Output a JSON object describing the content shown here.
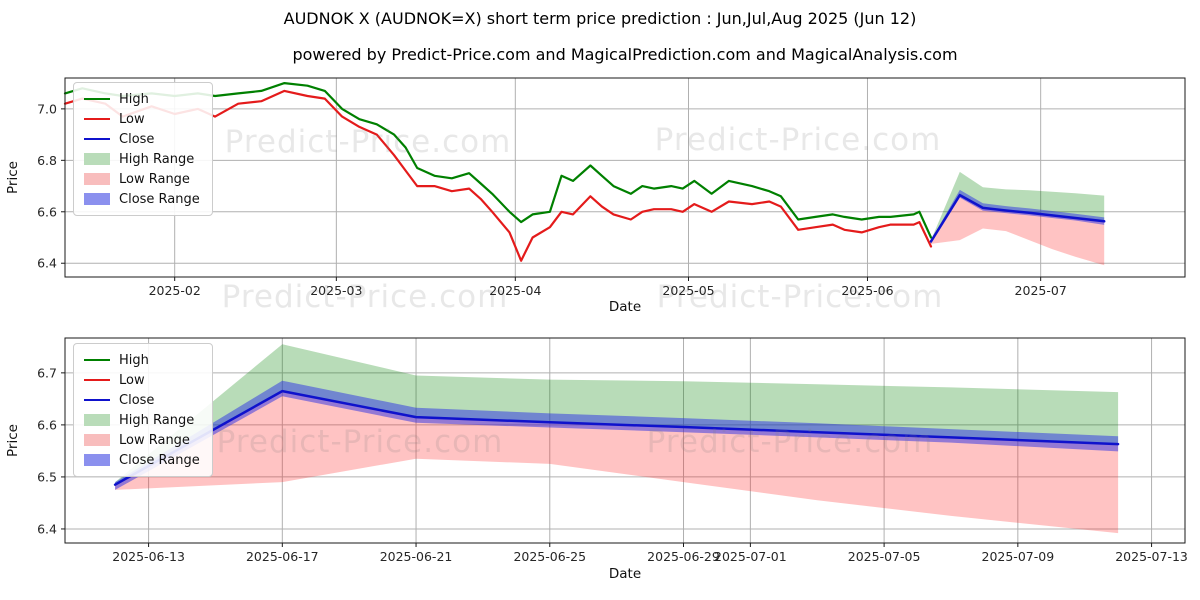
{
  "figure": {
    "title": "AUDNOK X (AUDNOK=X) short term price prediction : Jun,Jul,Aug 2025 (Jun 12)",
    "subtitle": "powered by Predict-Price.com and MagicalPrediction.com and MagicalAnalysis.com",
    "watermark": "Predict-Price.com",
    "background": "#ffffff"
  },
  "colors": {
    "high": "#008000",
    "low": "#e41b1b",
    "close": "#0f12cc",
    "high_range_fill": "rgba(0,128,0,0.28)",
    "low_range_fill": "rgba(255,32,32,0.27)",
    "close_range_fill": "rgba(42,48,230,0.5)",
    "high_range_swatch": "#b9dcb9",
    "low_range_swatch": "#f8bdbd",
    "close_range_swatch": "#8b90ee",
    "grid": "#b0b0b0",
    "spine": "#1a1a1a",
    "tick_label": "#262626"
  },
  "chart_data": [
    {
      "type": "line",
      "title": "",
      "xlabel": "Date",
      "ylabel": "Price",
      "xlim": [
        "2025-01-13",
        "2025-07-26"
      ],
      "ylim": [
        6.3465,
        7.12
      ],
      "grid": true,
      "legend_position": "upper left",
      "y_ticks": [
        {
          "value": 7.0,
          "label": "7.0"
        },
        {
          "value": 6.8,
          "label": "6.8"
        },
        {
          "value": 6.6,
          "label": "6.6"
        },
        {
          "value": 6.4,
          "label": "6.4"
        }
      ],
      "x_ticks": [
        {
          "date": "2025-02-01",
          "label": "2025-02"
        },
        {
          "date": "2025-03-01",
          "label": "2025-03"
        },
        {
          "date": "2025-04-01",
          "label": "2025-04"
        },
        {
          "date": "2025-05-01",
          "label": "2025-05"
        },
        {
          "date": "2025-06-01",
          "label": "2025-06"
        },
        {
          "date": "2025-07-01",
          "label": "2025-07"
        }
      ],
      "historical": {
        "dates": [
          "2025-01-13",
          "2025-01-16",
          "2025-01-20",
          "2025-01-23",
          "2025-01-28",
          "2025-02-01",
          "2025-02-05",
          "2025-02-08",
          "2025-02-12",
          "2025-02-16",
          "2025-02-20",
          "2025-02-24",
          "2025-02-27",
          "2025-03-02",
          "2025-03-05",
          "2025-03-08",
          "2025-03-11",
          "2025-03-13",
          "2025-03-15",
          "2025-03-18",
          "2025-03-21",
          "2025-03-24",
          "2025-03-26",
          "2025-03-28",
          "2025-03-31",
          "2025-04-02",
          "2025-04-04",
          "2025-04-07",
          "2025-04-09",
          "2025-04-11",
          "2025-04-14",
          "2025-04-16",
          "2025-04-18",
          "2025-04-21",
          "2025-04-23",
          "2025-04-25",
          "2025-04-28",
          "2025-04-30",
          "2025-05-02",
          "2025-05-05",
          "2025-05-08",
          "2025-05-12",
          "2025-05-15",
          "2025-05-17",
          "2025-05-20",
          "2025-05-23",
          "2025-05-26",
          "2025-05-28",
          "2025-05-31",
          "2025-06-03",
          "2025-06-05",
          "2025-06-09",
          "2025-06-10",
          "2025-06-12"
        ],
        "high": [
          7.06,
          7.08,
          7.06,
          7.05,
          7.06,
          7.05,
          7.06,
          7.05,
          7.06,
          7.07,
          7.1,
          7.09,
          7.07,
          7.0,
          6.96,
          6.94,
          6.9,
          6.85,
          6.77,
          6.74,
          6.73,
          6.75,
          6.71,
          6.67,
          6.6,
          6.56,
          6.59,
          6.6,
          6.74,
          6.72,
          6.78,
          6.74,
          6.7,
          6.67,
          6.7,
          6.69,
          6.7,
          6.69,
          6.72,
          6.67,
          6.72,
          6.7,
          6.68,
          6.66,
          6.57,
          6.58,
          6.59,
          6.58,
          6.57,
          6.58,
          6.58,
          6.59,
          6.6,
          6.5
        ],
        "low": [
          7.02,
          7.04,
          7.02,
          6.97,
          7.01,
          6.98,
          7.0,
          6.97,
          7.02,
          7.03,
          7.07,
          7.05,
          7.04,
          6.97,
          6.93,
          6.9,
          6.82,
          6.76,
          6.7,
          6.7,
          6.68,
          6.69,
          6.65,
          6.6,
          6.52,
          6.41,
          6.5,
          6.54,
          6.6,
          6.59,
          6.66,
          6.62,
          6.59,
          6.57,
          6.6,
          6.61,
          6.61,
          6.6,
          6.63,
          6.6,
          6.64,
          6.63,
          6.64,
          6.62,
          6.53,
          6.54,
          6.55,
          6.53,
          6.52,
          6.54,
          6.55,
          6.55,
          6.56,
          6.465
        ]
      },
      "prediction": {
        "dates": [
          "2025-06-12",
          "2025-06-17",
          "2025-06-21",
          "2025-06-25",
          "2025-06-29",
          "2025-07-03",
          "2025-07-07",
          "2025-07-12"
        ],
        "close": [
          6.485,
          6.665,
          6.615,
          6.605,
          6.596,
          6.586,
          6.576,
          6.563
        ],
        "high_range_top": [
          6.49,
          6.755,
          6.695,
          6.687,
          6.684,
          6.678,
          6.672,
          6.663
        ],
        "low_range_bottom": [
          6.475,
          6.49,
          6.535,
          6.525,
          6.49,
          6.455,
          6.425,
          6.392
        ],
        "close_range_top": [
          6.49,
          6.685,
          6.633,
          6.622,
          6.613,
          6.603,
          6.592,
          6.578
        ],
        "close_range_bottom": [
          6.475,
          6.655,
          6.604,
          6.595,
          6.586,
          6.576,
          6.566,
          6.549
        ]
      },
      "legend": [
        {
          "label": "High",
          "type": "line",
          "color": "#008000"
        },
        {
          "label": "Low",
          "type": "line",
          "color": "#e41b1b"
        },
        {
          "label": "Close",
          "type": "line",
          "color": "#0f12cc"
        },
        {
          "label": "High Range",
          "type": "patch",
          "color": "#b9dcb9"
        },
        {
          "label": "Low Range",
          "type": "patch",
          "color": "#f8bdbd"
        },
        {
          "label": "Close Range",
          "type": "patch",
          "color": "#8b90ee"
        }
      ]
    },
    {
      "type": "line",
      "title": "",
      "xlabel": "Date",
      "ylabel": "Price",
      "xlim": [
        "2025-06-10T12:00:00",
        "2025-07-14T00:00:00"
      ],
      "ylim": [
        6.373,
        6.767
      ],
      "grid": true,
      "legend_position": "upper left",
      "y_ticks": [
        {
          "value": 6.7,
          "label": "6.7"
        },
        {
          "value": 6.6,
          "label": "6.6"
        },
        {
          "value": 6.5,
          "label": "6.5"
        },
        {
          "value": 6.4,
          "label": "6.4"
        }
      ],
      "x_ticks": [
        {
          "date": "2025-06-13",
          "label": "2025-06-13"
        },
        {
          "date": "2025-06-17",
          "label": "2025-06-17"
        },
        {
          "date": "2025-06-21",
          "label": "2025-06-21"
        },
        {
          "date": "2025-06-25",
          "label": "2025-06-25"
        },
        {
          "date": "2025-06-29",
          "label": "2025-06-29"
        },
        {
          "date": "2025-07-01",
          "label": "2025-07-01"
        },
        {
          "date": "2025-07-05",
          "label": "2025-07-05"
        },
        {
          "date": "2025-07-09",
          "label": "2025-07-09"
        },
        {
          "date": "2025-07-13",
          "label": "2025-07-13"
        }
      ],
      "historical": {
        "dates": [],
        "high": [],
        "low": []
      },
      "prediction": {
        "dates": [
          "2025-06-12",
          "2025-06-17",
          "2025-06-21",
          "2025-06-25",
          "2025-06-29",
          "2025-07-03",
          "2025-07-07",
          "2025-07-12"
        ],
        "close": [
          6.485,
          6.665,
          6.615,
          6.605,
          6.596,
          6.586,
          6.576,
          6.563
        ],
        "high_range_top": [
          6.49,
          6.755,
          6.695,
          6.687,
          6.684,
          6.678,
          6.672,
          6.663
        ],
        "low_range_bottom": [
          6.475,
          6.49,
          6.535,
          6.525,
          6.49,
          6.455,
          6.425,
          6.392
        ],
        "close_range_top": [
          6.49,
          6.685,
          6.633,
          6.622,
          6.613,
          6.603,
          6.592,
          6.578
        ],
        "close_range_bottom": [
          6.475,
          6.655,
          6.604,
          6.595,
          6.586,
          6.576,
          6.566,
          6.549
        ]
      },
      "legend": [
        {
          "label": "High",
          "type": "line",
          "color": "#008000"
        },
        {
          "label": "Low",
          "type": "line",
          "color": "#e41b1b"
        },
        {
          "label": "Close",
          "type": "line",
          "color": "#0f12cc"
        },
        {
          "label": "High Range",
          "type": "patch",
          "color": "#b9dcb9"
        },
        {
          "label": "Low Range",
          "type": "patch",
          "color": "#f8bdbd"
        },
        {
          "label": "Close Range",
          "type": "patch",
          "color": "#8b90ee"
        }
      ]
    }
  ]
}
